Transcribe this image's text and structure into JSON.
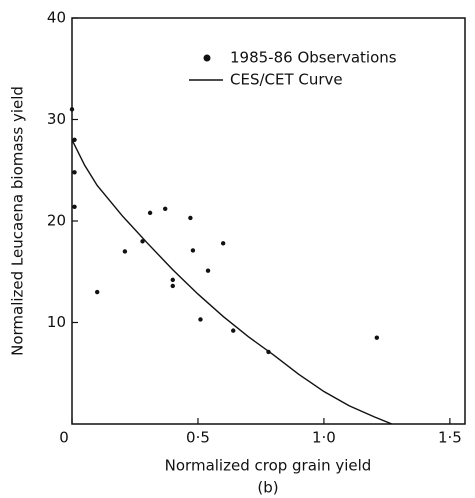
{
  "chart_data": {
    "type": "scatter",
    "x_label": "Normalized crop grain yield",
    "y_label": "Normalized Leucaena biomass yield",
    "caption": "(b)",
    "xlim": [
      0,
      1.56
    ],
    "ylim": [
      0,
      40
    ],
    "xticks": [
      0,
      {
        "value": 0.5,
        "label": "0·5"
      },
      {
        "value": 1.0,
        "label": "1·0"
      },
      {
        "value": 1.5,
        "label": "1·5"
      }
    ],
    "yticks": [
      10,
      20,
      30,
      40
    ],
    "legend": "upper right",
    "series": [
      {
        "name": "1985-86 Observations",
        "type": "scatter",
        "color": "#111",
        "x": [
          0,
          0.01,
          0.01,
          0.01,
          0.1,
          0.21,
          0.28,
          0.31,
          0.37,
          0.4,
          0.4,
          0.47,
          0.48,
          0.51,
          0.54,
          0.6,
          0.64,
          0.78,
          1.21
        ],
        "values": [
          31,
          28,
          24.8,
          21.4,
          13.0,
          17.0,
          18.0,
          20.8,
          21.2,
          14.2,
          13.6,
          20.3,
          17.1,
          10.3,
          15.1,
          17.8,
          9.2,
          7.1,
          8.5
        ]
      },
      {
        "name": "CES/CET Curve",
        "type": "line",
        "color": "#111",
        "x": [
          0,
          0.05,
          0.1,
          0.2,
          0.3,
          0.4,
          0.5,
          0.6,
          0.7,
          0.8,
          0.9,
          1.0,
          1.1,
          1.2,
          1.27
        ],
        "values": [
          28,
          25.5,
          23.5,
          20.5,
          17.8,
          15.2,
          12.8,
          10.6,
          8.6,
          6.8,
          4.9,
          3.2,
          1.8,
          0.7,
          0
        ]
      }
    ]
  }
}
